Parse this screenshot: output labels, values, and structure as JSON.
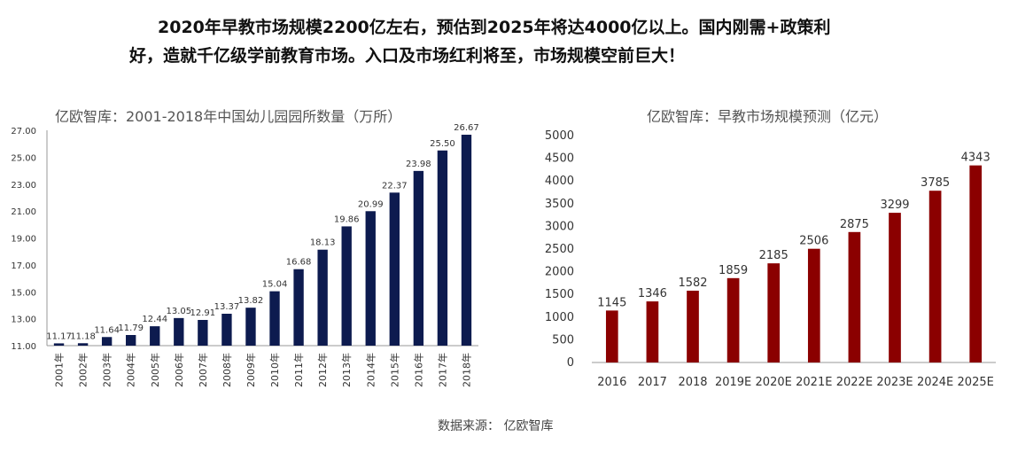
{
  "headline": {
    "line1": "2020年早教市场规模2200亿左右，预估到2025年将达4000亿以上。国内刚需+政策利",
    "line2": "好，造就千亿级学前教育市场。入口及市场红利将至，市场规模空前巨大！"
  },
  "source": "数据来源：  亿欧智库",
  "chart_data": [
    {
      "type": "bar",
      "title": "亿欧智库：2001-2018年中国幼儿园园所数量（万所）",
      "categories": [
        "2001年",
        "2002年",
        "2003年",
        "2004年",
        "2005年",
        "2006年",
        "2007年",
        "2008年",
        "2009年",
        "2010年",
        "2011年",
        "2012年",
        "2013年",
        "2014年",
        "2015年",
        "2016年",
        "2017年",
        "2018年"
      ],
      "values": [
        11.17,
        11.18,
        11.64,
        11.79,
        12.44,
        13.05,
        12.91,
        13.37,
        13.82,
        15.04,
        16.68,
        18.13,
        19.86,
        20.99,
        22.37,
        23.98,
        25.5,
        26.67
      ],
      "value_labels": [
        "11.17",
        "11.18",
        "11.64",
        "11.79",
        "12.44",
        "13.05",
        "12.91",
        "13.37",
        "13.82",
        "15.04",
        "16.68",
        "18.13",
        "19.86",
        "20.99",
        "22.37",
        "23.98",
        "25.50",
        "26.67"
      ],
      "yticks": [
        "11.00",
        "13.00",
        "15.00",
        "17.00",
        "19.00",
        "21.00",
        "23.00",
        "25.00",
        "27.00"
      ],
      "ylim": [
        11,
        27
      ],
      "grid": false,
      "color": "#0d1b4f"
    },
    {
      "type": "bar",
      "title": "亿欧智库：早教市场规模预测（亿元）",
      "categories": [
        "2016",
        "2017",
        "2018",
        "2019E",
        "2020E",
        "2021E",
        "2022E",
        "2023E",
        "2024E",
        "2025E"
      ],
      "values": [
        1145,
        1346,
        1582,
        1859,
        2185,
        2506,
        2875,
        3299,
        3785,
        4343
      ],
      "value_labels": [
        "1145",
        "1346",
        "1582",
        "1859",
        "2185",
        "2506",
        "2875",
        "3299",
        "3785",
        "4343"
      ],
      "yticks": [
        "0",
        "500",
        "1000",
        "1500",
        "2000",
        "2500",
        "3000",
        "3500",
        "4000",
        "4500",
        "5000"
      ],
      "ylim": [
        0,
        5000
      ],
      "grid": false,
      "color": "#8b0000"
    }
  ]
}
